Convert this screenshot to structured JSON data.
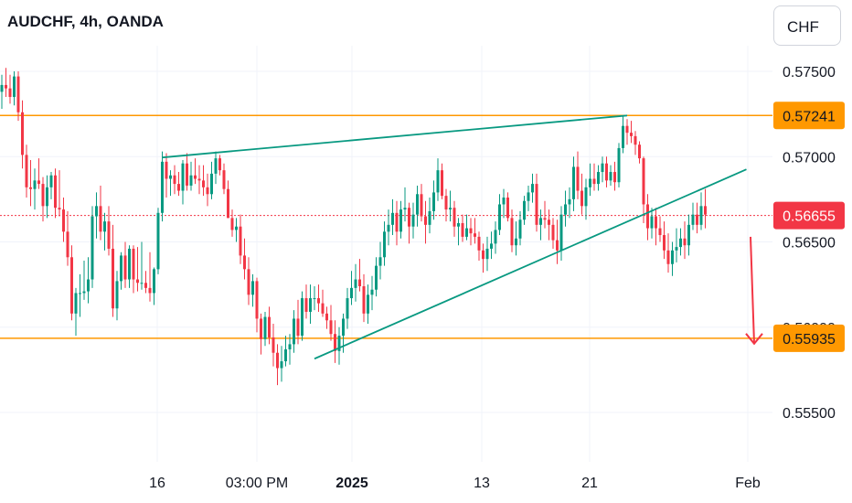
{
  "header": {
    "title": "AUDCHF, 4h, OANDA",
    "currency": "CHF"
  },
  "chart_data": {
    "type": "candlestick",
    "symbol": "AUDCHF",
    "timeframe": "4h",
    "source": "OANDA",
    "currency": "CHF",
    "y_ticks": [
      "0.57500",
      "0.57000",
      "0.56500",
      "0.56000",
      "0.55500"
    ],
    "ylim": [
      0.5518,
      0.578
    ],
    "x_ticks": [
      {
        "label": "16",
        "bold": false
      },
      {
        "label": "03:00 PM",
        "bold": false
      },
      {
        "label": "2025",
        "bold": true
      },
      {
        "label": "13",
        "bold": false
      },
      {
        "label": "21",
        "bold": false
      },
      {
        "label": "Feb",
        "bold": false
      }
    ],
    "price_labels": [
      {
        "price": 0.57241,
        "text": "0.57241",
        "color": "#ff9800",
        "text_color": "#131722"
      },
      {
        "price": 0.56655,
        "text": "0.56655",
        "color": "#f23645",
        "text_color": "#ffffff"
      },
      {
        "price": 0.55935,
        "text": "0.55935",
        "color": "#ff9800",
        "text_color": "#131722"
      }
    ],
    "levels": [
      {
        "price": 0.57241,
        "color": "#ff9800",
        "style": "solid"
      },
      {
        "price": 0.55935,
        "color": "#ff9800",
        "style": "solid"
      },
      {
        "price": 0.56655,
        "color": "#f23645",
        "style": "dotted"
      }
    ],
    "candles": [
      [
        0.5738,
        0.5748,
        0.5728,
        0.5742
      ],
      [
        0.5742,
        0.5752,
        0.5735,
        0.574
      ],
      [
        0.574,
        0.5748,
        0.5731,
        0.5735
      ],
      [
        0.5735,
        0.575,
        0.573,
        0.5747
      ],
      [
        0.5747,
        0.575,
        0.5721,
        0.5726
      ],
      [
        0.5726,
        0.5733,
        0.5693,
        0.5701
      ],
      [
        0.5701,
        0.5707,
        0.5676,
        0.5682
      ],
      [
        0.5682,
        0.5698,
        0.5671,
        0.5681
      ],
      [
        0.5681,
        0.5693,
        0.5669,
        0.5686
      ],
      [
        0.5686,
        0.5699,
        0.5681,
        0.5684
      ],
      [
        0.5684,
        0.5688,
        0.5662,
        0.5671
      ],
      [
        0.5671,
        0.5689,
        0.5664,
        0.5682
      ],
      [
        0.5682,
        0.5691,
        0.5675,
        0.5689
      ],
      [
        0.5689,
        0.5693,
        0.5664,
        0.567
      ],
      [
        0.567,
        0.5692,
        0.5665,
        0.5669
      ],
      [
        0.5669,
        0.5676,
        0.565,
        0.5656
      ],
      [
        0.5656,
        0.5668,
        0.5636,
        0.5641
      ],
      [
        0.5641,
        0.5648,
        0.5604,
        0.5608
      ],
      [
        0.5608,
        0.5623,
        0.5595,
        0.562
      ],
      [
        0.562,
        0.5631,
        0.5606,
        0.562
      ],
      [
        0.562,
        0.5639,
        0.5616,
        0.5621
      ],
      [
        0.5621,
        0.5641,
        0.5614,
        0.5628
      ],
      [
        0.5628,
        0.5671,
        0.5623,
        0.5665
      ],
      [
        0.5665,
        0.5679,
        0.5652,
        0.5671
      ],
      [
        0.5671,
        0.5683,
        0.5651,
        0.5656
      ],
      [
        0.5656,
        0.5667,
        0.5645,
        0.5662
      ],
      [
        0.5662,
        0.5671,
        0.5642,
        0.5646
      ],
      [
        0.5646,
        0.566,
        0.5606,
        0.5611
      ],
      [
        0.5611,
        0.5633,
        0.5604,
        0.5627
      ],
      [
        0.5627,
        0.5644,
        0.5622,
        0.5642
      ],
      [
        0.5642,
        0.565,
        0.5623,
        0.5628
      ],
      [
        0.5628,
        0.5648,
        0.5623,
        0.5646
      ],
      [
        0.5646,
        0.5648,
        0.562,
        0.5628
      ],
      [
        0.5628,
        0.5647,
        0.5621,
        0.5626
      ],
      [
        0.5626,
        0.565,
        0.5622,
        0.5626
      ],
      [
        0.5626,
        0.5633,
        0.562,
        0.5623
      ],
      [
        0.5623,
        0.5644,
        0.5615,
        0.562
      ],
      [
        0.562,
        0.5635,
        0.5613,
        0.5634
      ],
      [
        0.5634,
        0.567,
        0.5631,
        0.5667
      ],
      [
        0.5667,
        0.5703,
        0.5662,
        0.5697
      ],
      [
        0.5697,
        0.5702,
        0.5676,
        0.5687
      ],
      [
        0.5687,
        0.5692,
        0.5677,
        0.5689
      ],
      [
        0.5689,
        0.5695,
        0.5678,
        0.5684
      ],
      [
        0.5684,
        0.5691,
        0.5677,
        0.568
      ],
      [
        0.568,
        0.5698,
        0.5672,
        0.5696
      ],
      [
        0.5696,
        0.5702,
        0.568,
        0.5683
      ],
      [
        0.5683,
        0.5697,
        0.568,
        0.5689
      ],
      [
        0.5689,
        0.5699,
        0.5684,
        0.5687
      ],
      [
        0.5687,
        0.5695,
        0.5678,
        0.5686
      ],
      [
        0.5686,
        0.5695,
        0.5677,
        0.5682
      ],
      [
        0.5682,
        0.569,
        0.5671,
        0.5678
      ],
      [
        0.5678,
        0.5697,
        0.5675,
        0.569
      ],
      [
        0.569,
        0.5703,
        0.5684,
        0.5699
      ],
      [
        0.5699,
        0.5701,
        0.5689,
        0.5692
      ],
      [
        0.5692,
        0.5696,
        0.5678,
        0.5681
      ],
      [
        0.5681,
        0.5686,
        0.5664,
        0.5664
      ],
      [
        0.5664,
        0.5669,
        0.5653,
        0.5657
      ],
      [
        0.5657,
        0.5664,
        0.565,
        0.5659
      ],
      [
        0.5659,
        0.5666,
        0.5637,
        0.5642
      ],
      [
        0.5642,
        0.5652,
        0.5628,
        0.5634
      ],
      [
        0.5634,
        0.5641,
        0.5613,
        0.5619
      ],
      [
        0.5619,
        0.5631,
        0.5612,
        0.5627
      ],
      [
        0.5627,
        0.5629,
        0.5597,
        0.5605
      ],
      [
        0.5605,
        0.5608,
        0.5584,
        0.5593
      ],
      [
        0.5593,
        0.5609,
        0.5589,
        0.5606
      ],
      [
        0.5606,
        0.5612,
        0.559,
        0.5594
      ],
      [
        0.5594,
        0.5602,
        0.5577,
        0.5585
      ],
      [
        0.5585,
        0.559,
        0.5566,
        0.5576
      ],
      [
        0.5576,
        0.5589,
        0.5568,
        0.558
      ],
      [
        0.558,
        0.5595,
        0.5577,
        0.5587
      ],
      [
        0.5587,
        0.5596,
        0.5578,
        0.559
      ],
      [
        0.559,
        0.561,
        0.5585,
        0.5605
      ],
      [
        0.5605,
        0.5616,
        0.559,
        0.5595
      ],
      [
        0.5595,
        0.5621,
        0.5592,
        0.5617
      ],
      [
        0.5617,
        0.5625,
        0.5605,
        0.5609
      ],
      [
        0.5609,
        0.5625,
        0.5602,
        0.5617
      ],
      [
        0.5617,
        0.5624,
        0.561,
        0.5617
      ],
      [
        0.5617,
        0.5625,
        0.5609,
        0.5614
      ],
      [
        0.5614,
        0.5622,
        0.5606,
        0.5608
      ],
      [
        0.5608,
        0.5612,
        0.5599,
        0.5604
      ],
      [
        0.5604,
        0.5613,
        0.5592,
        0.5596
      ],
      [
        0.5596,
        0.5604,
        0.5579,
        0.5586
      ],
      [
        0.5586,
        0.56,
        0.5578,
        0.5595
      ],
      [
        0.5595,
        0.5608,
        0.5585,
        0.5605
      ],
      [
        0.5605,
        0.5623,
        0.5599,
        0.5617
      ],
      [
        0.5617,
        0.5633,
        0.5613,
        0.5623
      ],
      [
        0.5623,
        0.5637,
        0.5615,
        0.5628
      ],
      [
        0.5628,
        0.564,
        0.5621,
        0.5624
      ],
      [
        0.5624,
        0.5631,
        0.5603,
        0.5608
      ],
      [
        0.5608,
        0.5625,
        0.5602,
        0.5619
      ],
      [
        0.5619,
        0.563,
        0.561,
        0.5622
      ],
      [
        0.5622,
        0.5641,
        0.5618,
        0.5636
      ],
      [
        0.5636,
        0.565,
        0.5628,
        0.5641
      ],
      [
        0.5641,
        0.5662,
        0.5636,
        0.5656
      ],
      [
        0.5656,
        0.5669,
        0.5648,
        0.566
      ],
      [
        0.566,
        0.5675,
        0.5654,
        0.5667
      ],
      [
        0.5667,
        0.5674,
        0.5648,
        0.5656
      ],
      [
        0.5656,
        0.5674,
        0.5652,
        0.5669
      ],
      [
        0.5669,
        0.5682,
        0.5662,
        0.567
      ],
      [
        0.567,
        0.5673,
        0.5649,
        0.5659
      ],
      [
        0.5659,
        0.5673,
        0.5652,
        0.5666
      ],
      [
        0.5666,
        0.5683,
        0.5659,
        0.5678
      ],
      [
        0.5678,
        0.5684,
        0.5662,
        0.5665
      ],
      [
        0.5665,
        0.5674,
        0.5649,
        0.566
      ],
      [
        0.566,
        0.5676,
        0.5655,
        0.5668
      ],
      [
        0.5668,
        0.5686,
        0.5663,
        0.5679
      ],
      [
        0.5679,
        0.5699,
        0.5674,
        0.5692
      ],
      [
        0.5692,
        0.5696,
        0.5675,
        0.5677
      ],
      [
        0.5677,
        0.5681,
        0.5662,
        0.5669
      ],
      [
        0.5669,
        0.568,
        0.5662,
        0.567
      ],
      [
        0.567,
        0.5674,
        0.5653,
        0.5659
      ],
      [
        0.5659,
        0.5664,
        0.5648,
        0.5661
      ],
      [
        0.5661,
        0.5666,
        0.565,
        0.5653
      ],
      [
        0.5653,
        0.5666,
        0.5651,
        0.5658
      ],
      [
        0.5658,
        0.5664,
        0.5648,
        0.5655
      ],
      [
        0.5655,
        0.5664,
        0.5649,
        0.5653
      ],
      [
        0.5653,
        0.5656,
        0.5639,
        0.5645
      ],
      [
        0.5645,
        0.5649,
        0.5632,
        0.564
      ],
      [
        0.564,
        0.5653,
        0.5633,
        0.5646
      ],
      [
        0.5646,
        0.5656,
        0.564,
        0.5649
      ],
      [
        0.5649,
        0.5662,
        0.5643,
        0.5657
      ],
      [
        0.5657,
        0.5678,
        0.5654,
        0.5672
      ],
      [
        0.5672,
        0.5681,
        0.5664,
        0.5676
      ],
      [
        0.5676,
        0.5679,
        0.5662,
        0.5664
      ],
      [
        0.5664,
        0.5669,
        0.5644,
        0.5648
      ],
      [
        0.5648,
        0.5662,
        0.5642,
        0.5652
      ],
      [
        0.5652,
        0.5668,
        0.5648,
        0.5663
      ],
      [
        0.5663,
        0.5677,
        0.566,
        0.5674
      ],
      [
        0.5674,
        0.5683,
        0.5668,
        0.5679
      ],
      [
        0.5679,
        0.569,
        0.5673,
        0.5684
      ],
      [
        0.5684,
        0.569,
        0.5656,
        0.566
      ],
      [
        0.566,
        0.5669,
        0.5651,
        0.5664
      ],
      [
        0.5664,
        0.5674,
        0.5658,
        0.5663
      ],
      [
        0.5663,
        0.5669,
        0.5651,
        0.566
      ],
      [
        0.566,
        0.5664,
        0.5646,
        0.5651
      ],
      [
        0.5651,
        0.5663,
        0.5637,
        0.5645
      ],
      [
        0.5645,
        0.5671,
        0.5639,
        0.5666
      ],
      [
        0.5666,
        0.568,
        0.5659,
        0.5672
      ],
      [
        0.5672,
        0.5682,
        0.5664,
        0.5675
      ],
      [
        0.5675,
        0.57,
        0.5668,
        0.5694
      ],
      [
        0.5694,
        0.5703,
        0.5675,
        0.568
      ],
      [
        0.568,
        0.569,
        0.5666,
        0.5671
      ],
      [
        0.5671,
        0.5687,
        0.5663,
        0.5682
      ],
      [
        0.5682,
        0.5696,
        0.5677,
        0.5687
      ],
      [
        0.5687,
        0.5696,
        0.568,
        0.5684
      ],
      [
        0.5684,
        0.5695,
        0.568,
        0.5691
      ],
      [
        0.5691,
        0.57,
        0.5685,
        0.5696
      ],
      [
        0.5696,
        0.57,
        0.5682,
        0.5686
      ],
      [
        0.5686,
        0.5695,
        0.5683,
        0.5691
      ],
      [
        0.5691,
        0.5697,
        0.568,
        0.5685
      ],
      [
        0.5685,
        0.5708,
        0.5682,
        0.5705
      ],
      [
        0.5705,
        0.5724,
        0.5702,
        0.5718
      ],
      [
        0.5718,
        0.5722,
        0.5707,
        0.5714
      ],
      [
        0.5714,
        0.5721,
        0.5708,
        0.5712
      ],
      [
        0.5712,
        0.5715,
        0.5701,
        0.5707
      ],
      [
        0.5707,
        0.5709,
        0.5696,
        0.5699
      ],
      [
        0.5699,
        0.57,
        0.5661,
        0.5672
      ],
      [
        0.5672,
        0.5678,
        0.5651,
        0.5658
      ],
      [
        0.5658,
        0.567,
        0.5652,
        0.5665
      ],
      [
        0.5665,
        0.567,
        0.5648,
        0.5658
      ],
      [
        0.5658,
        0.5665,
        0.565,
        0.5654
      ],
      [
        0.5654,
        0.5662,
        0.564,
        0.5645
      ],
      [
        0.5645,
        0.5655,
        0.5632,
        0.5637
      ],
      [
        0.5637,
        0.565,
        0.563,
        0.5645
      ],
      [
        0.5645,
        0.5658,
        0.5638,
        0.5647
      ],
      [
        0.5647,
        0.5658,
        0.5642,
        0.5652
      ],
      [
        0.5652,
        0.5662,
        0.564,
        0.5648
      ],
      [
        0.5648,
        0.5666,
        0.5642,
        0.566
      ],
      [
        0.566,
        0.5673,
        0.5657,
        0.5666
      ],
      [
        0.5666,
        0.5673,
        0.5655,
        0.566
      ],
      [
        0.566,
        0.5679,
        0.5657,
        0.5671
      ],
      [
        0.5671,
        0.5681,
        0.5658,
        0.5666
      ]
    ],
    "trend_lines": [
      {
        "from": {
          "index": 39,
          "price": 0.56995
        },
        "to": {
          "index": 152,
          "price": 0.57241
        },
        "color": "#089981"
      },
      {
        "from": {
          "index": 76,
          "price": 0.55815
        },
        "to": {
          "index": 181,
          "price": 0.56925
        },
        "color": "#089981"
      }
    ],
    "forecast_arrow": {
      "from_price": 0.5653,
      "to_price": 0.5593,
      "color": "#f23645"
    },
    "colors": {
      "up": "#089981",
      "down": "#f23645",
      "grid": "#f0f3fa",
      "axis_text": "#131722"
    }
  }
}
